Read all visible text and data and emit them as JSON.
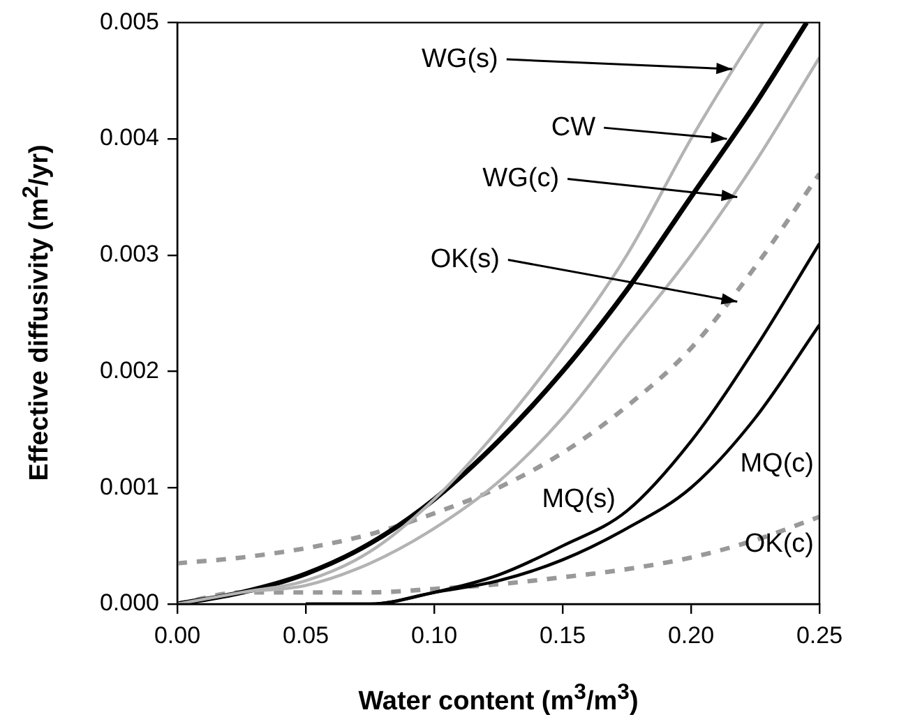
{
  "chart_data": {
    "type": "line",
    "xlabel": "Water content (m$^{3}$/m$^{3}$)",
    "ylabel": "Effective diffusivity (m$^{2}$/yr)",
    "xlim": [
      0,
      0.25
    ],
    "xticks": [
      {
        "value": 0,
        "label": "0.00"
      },
      0.05,
      {
        "value": 0.1,
        "label": "0.10"
      },
      0.15,
      {
        "value": 0.2,
        "label": "0.20"
      },
      0.25
    ],
    "ylim": [
      0,
      0.005
    ],
    "yticks": [
      {
        "value": 0,
        "label": "0.000"
      },
      0.001,
      0.002,
      0.003,
      0.004,
      0.005
    ],
    "grid": false,
    "marker": "none",
    "annotations": [
      {
        "text": "WG(s)",
        "x": 0.216,
        "y": 0.0046
      },
      {
        "text": "CW",
        "x": 0.214,
        "y": 0.004
      },
      {
        "text": "WG(c)",
        "x": 0.218,
        "y": 0.0035
      },
      {
        "text": "OK(s)",
        "x": 0.218,
        "y": 0.0026
      }
    ],
    "series": [
      {
        "color": "#b3b3b3",
        "line_style": "solid",
        "x": [
          0,
          0.025,
          0.05,
          0.075,
          0.1,
          0.125,
          0.15,
          0.175,
          0.2,
          0.225,
          0.228
        ],
        "values": [
          0,
          0.0001,
          0.0002,
          0.00045,
          0.0009,
          0.0015,
          0.0022,
          0.003,
          0.004,
          0.0049,
          0.005
        ]
      },
      {
        "color": "#000000",
        "line_style": "solid",
        "x": [
          0,
          0.025,
          0.05,
          0.075,
          0.1,
          0.125,
          0.15,
          0.175,
          0.2,
          0.225,
          0.245
        ],
        "values": [
          0,
          0.0001,
          0.00026,
          0.00052,
          0.0009,
          0.0014,
          0.002,
          0.0027,
          0.0035,
          0.0043,
          0.005
        ]
      },
      {
        "color": "#b3b3b3",
        "line_style": "solid",
        "x": [
          0,
          0.025,
          0.05,
          0.075,
          0.1,
          0.125,
          0.15,
          0.175,
          0.2,
          0.225,
          0.25
        ],
        "values": [
          0,
          0.0001,
          0.00016,
          0.00035,
          0.00065,
          0.00105,
          0.0016,
          0.0023,
          0.003,
          0.0038,
          0.0047
        ]
      },
      {
        "color": "#999999",
        "line_style": "dashed",
        "x": [
          0,
          0.025,
          0.05,
          0.075,
          0.1,
          0.125,
          0.15,
          0.175,
          0.2,
          0.225,
          0.25
        ],
        "values": [
          0.00035,
          0.0004,
          0.00048,
          0.0006,
          0.00078,
          0.001,
          0.0013,
          0.0017,
          0.0022,
          0.0029,
          0.0037
        ]
      },
      {
        "name": "MQ(s)",
        "color": "#000000",
        "line_style": "solid",
        "x": [
          0.05,
          0.075,
          0.1,
          0.125,
          0.15,
          0.175,
          0.2,
          0.225,
          0.25
        ],
        "values": [
          0,
          0,
          0.0001,
          0.00025,
          0.0005,
          0.0008,
          0.0014,
          0.0022,
          0.0031
        ]
      },
      {
        "name": "MQ(c)",
        "color": "#000000",
        "line_style": "solid",
        "x": [
          0.05,
          0.075,
          0.1,
          0.125,
          0.15,
          0.175,
          0.2,
          0.225,
          0.25
        ],
        "values": [
          0,
          0,
          0.0001,
          0.0002,
          0.00038,
          0.00065,
          0.001,
          0.0016,
          0.0024
        ]
      },
      {
        "name": "OK(c)",
        "color": "#999999",
        "line_style": "dashed",
        "x": [
          0,
          0.025,
          0.05,
          0.075,
          0.1,
          0.125,
          0.15,
          0.175,
          0.2,
          0.225,
          0.25
        ],
        "values": [
          0,
          0.0001,
          0.0001,
          0.0001,
          0.00013,
          0.00017,
          0.00023,
          0.0003,
          0.0004,
          0.00055,
          0.00075
        ]
      }
    ]
  }
}
